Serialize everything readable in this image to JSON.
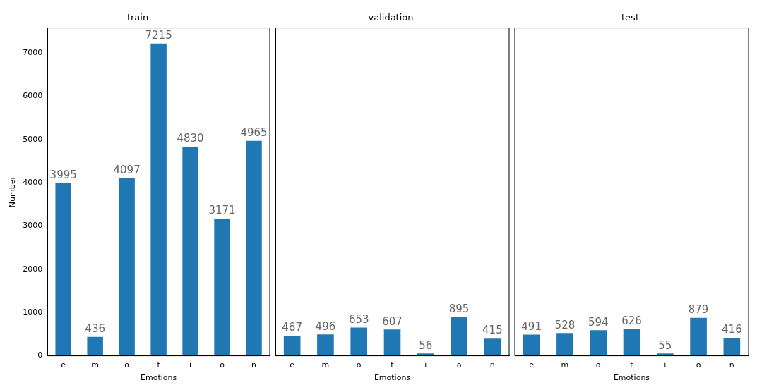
{
  "chart_data": [
    {
      "type": "bar",
      "title": "train",
      "xlabel": "Emotions",
      "ylabel": "Number",
      "categories": [
        "e",
        "m",
        "o",
        "t",
        "i",
        "o",
        "n"
      ],
      "values": [
        3995,
        436,
        4097,
        7215,
        4830,
        3171,
        4965
      ],
      "color": "#1f77b4",
      "ylim": [
        0,
        7575
      ],
      "yticks": [
        0,
        1000,
        2000,
        3000,
        4000,
        5000,
        6000,
        7000
      ],
      "data_labels": true,
      "grid": false,
      "legend": false
    },
    {
      "type": "bar",
      "title": "validation",
      "xlabel": "Emotions",
      "categories": [
        "e",
        "m",
        "o",
        "t",
        "i",
        "o",
        "n"
      ],
      "values": [
        467,
        496,
        653,
        607,
        56,
        895,
        415
      ],
      "color": "#1f77b4",
      "ylim": [
        0,
        7575
      ],
      "yticks": [
        0,
        1000,
        2000,
        3000,
        4000,
        5000,
        6000,
        7000
      ],
      "tick_labels": "x",
      "data_labels": true,
      "grid": false,
      "legend": false
    },
    {
      "type": "bar",
      "title": "test",
      "xlabel": "Emotions",
      "categories": [
        "e",
        "m",
        "o",
        "t",
        "i",
        "o",
        "n"
      ],
      "values": [
        491,
        528,
        594,
        626,
        55,
        879,
        416
      ],
      "color": "#1f77b4",
      "ylim": [
        0,
        7575
      ],
      "yticks": [
        0,
        1000,
        2000,
        3000,
        4000,
        5000,
        6000,
        7000
      ],
      "tick_labels": "x",
      "data_labels": true,
      "grid": false,
      "legend": false
    }
  ]
}
